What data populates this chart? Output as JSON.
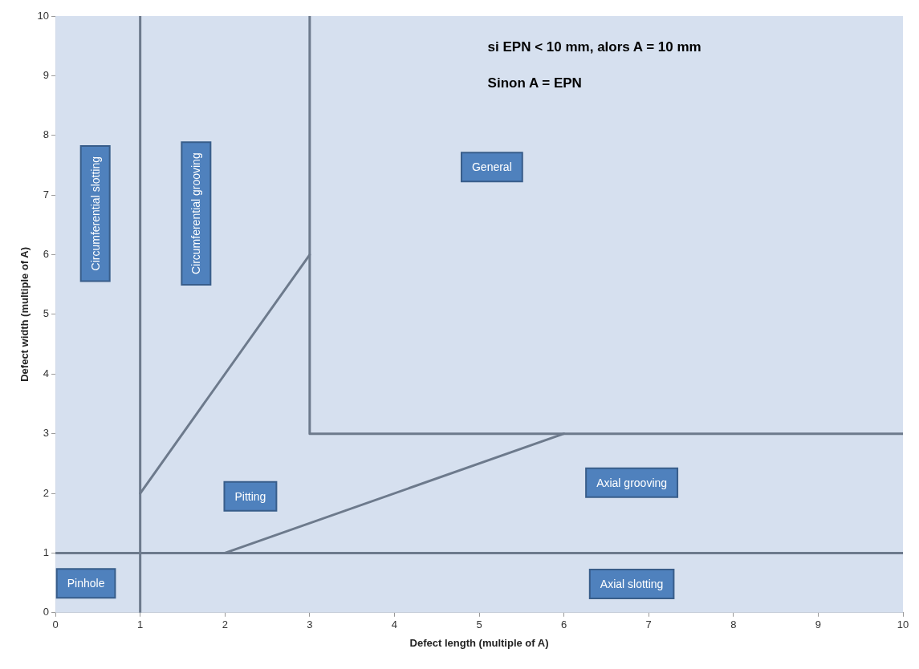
{
  "chart_data": {
    "type": "line",
    "xlabel": "Defect length (multiple of A)",
    "ylabel": "Defect width (multiple of A)",
    "xlim": [
      0,
      10
    ],
    "ylim": [
      0,
      10
    ],
    "xticks": [
      0,
      1,
      2,
      3,
      4,
      5,
      6,
      7,
      8,
      9,
      10
    ],
    "yticks": [
      0,
      1,
      2,
      3,
      4,
      5,
      6,
      7,
      8,
      9,
      10
    ],
    "grid": false,
    "legend": false,
    "marker": "none",
    "series": [
      {
        "color": "#6d7a8c",
        "x": [
          1,
          1
        ],
        "values": [
          0,
          10
        ]
      },
      {
        "color": "#6d7a8c",
        "x": [
          0,
          10
        ],
        "values": [
          1,
          1
        ]
      },
      {
        "color": "#6d7a8c",
        "x": [
          3,
          3,
          10
        ],
        "values": [
          10,
          3,
          3
        ]
      },
      {
        "color": "#6d7a8c",
        "x": [
          1,
          3
        ],
        "values": [
          2,
          6
        ]
      },
      {
        "color": "#6d7a8c",
        "x": [
          2,
          6
        ],
        "values": [
          1,
          3
        ]
      }
    ],
    "annotations": [
      "si EPN < 10 mm, alors A = 10 mm",
      "Sinon A = EPN",
      "Pinhole",
      "Circumferential slotting",
      "Circumferential grooving",
      "General",
      "Pitting",
      "Axial grooving",
      "Axial slotting"
    ]
  }
}
